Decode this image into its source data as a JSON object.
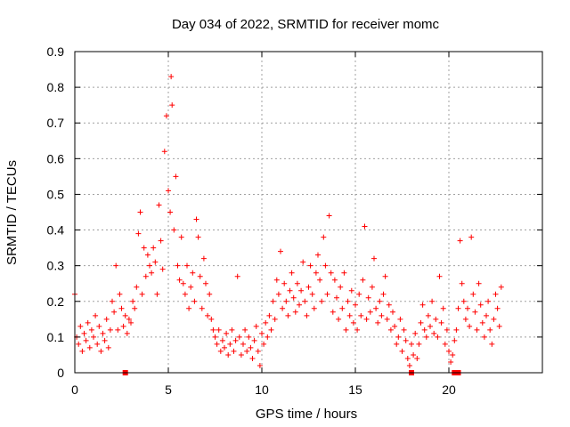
{
  "chart_data": {
    "type": "scatter",
    "title": "Day 034 of 2022, SRMTID for receiver momc",
    "xlabel": "GPS time / hours",
    "ylabel": "SRMTID / TECUs",
    "xlim": [
      0,
      25
    ],
    "ylim": [
      0,
      0.9
    ],
    "xticks": [
      0,
      5,
      10,
      15,
      20
    ],
    "xtick_labels": [
      "0",
      "5",
      "10",
      "15",
      "20"
    ],
    "yticks": [
      0,
      0.1,
      0.2,
      0.3,
      0.4,
      0.5,
      0.6,
      0.7,
      0.8,
      0.9
    ],
    "ytick_labels": [
      "0",
      "0.1",
      "0.2",
      "0.3",
      "0.4",
      "0.5",
      "0.6",
      "0.7",
      "0.8",
      "0.9"
    ],
    "grid": true,
    "marker": "plus",
    "color": "#ff0000",
    "series": [
      {
        "name": "SRMTID",
        "points": [
          [
            0.0,
            0.22
          ],
          [
            0.1,
            0.1
          ],
          [
            0.2,
            0.08
          ],
          [
            0.3,
            0.13
          ],
          [
            0.4,
            0.06
          ],
          [
            0.5,
            0.11
          ],
          [
            0.6,
            0.09
          ],
          [
            0.7,
            0.14
          ],
          [
            0.8,
            0.07
          ],
          [
            0.9,
            0.12
          ],
          [
            1.0,
            0.1
          ],
          [
            1.1,
            0.16
          ],
          [
            1.2,
            0.08
          ],
          [
            1.3,
            0.13
          ],
          [
            1.4,
            0.06
          ],
          [
            1.5,
            0.11
          ],
          [
            1.6,
            0.09
          ],
          [
            1.7,
            0.15
          ],
          [
            1.8,
            0.07
          ],
          [
            1.9,
            0.12
          ],
          [
            2.0,
            0.2
          ],
          [
            2.1,
            0.17
          ],
          [
            2.2,
            0.3
          ],
          [
            2.3,
            0.12
          ],
          [
            2.4,
            0.22
          ],
          [
            2.5,
            0.18
          ],
          [
            2.6,
            0.13
          ],
          [
            2.7,
            0.16
          ],
          [
            2.8,
            0.11
          ],
          [
            2.9,
            0.15
          ],
          [
            3.0,
            0.14
          ],
          [
            3.1,
            0.2
          ],
          [
            3.2,
            0.18
          ],
          [
            3.3,
            0.24
          ],
          [
            3.4,
            0.39
          ],
          [
            3.5,
            0.45
          ],
          [
            3.6,
            0.22
          ],
          [
            3.7,
            0.35
          ],
          [
            3.8,
            0.27
          ],
          [
            3.9,
            0.33
          ],
          [
            4.0,
            0.3
          ],
          [
            4.1,
            0.28
          ],
          [
            4.2,
            0.35
          ],
          [
            4.3,
            0.31
          ],
          [
            4.4,
            0.22
          ],
          [
            4.5,
            0.47
          ],
          [
            4.6,
            0.37
          ],
          [
            4.7,
            0.29
          ],
          [
            4.8,
            0.62
          ],
          [
            4.9,
            0.72
          ],
          [
            5.0,
            0.51
          ],
          [
            5.1,
            0.45
          ],
          [
            5.15,
            0.83
          ],
          [
            5.2,
            0.75
          ],
          [
            5.3,
            0.4
          ],
          [
            5.4,
            0.55
          ],
          [
            5.5,
            0.3
          ],
          [
            5.6,
            0.26
          ],
          [
            5.7,
            0.38
          ],
          [
            5.8,
            0.25
          ],
          [
            5.9,
            0.22
          ],
          [
            6.0,
            0.3
          ],
          [
            6.1,
            0.18
          ],
          [
            6.2,
            0.24
          ],
          [
            6.3,
            0.28
          ],
          [
            6.4,
            0.2
          ],
          [
            6.5,
            0.43
          ],
          [
            6.6,
            0.38
          ],
          [
            6.7,
            0.27
          ],
          [
            6.8,
            0.18
          ],
          [
            6.9,
            0.32
          ],
          [
            7.0,
            0.25
          ],
          [
            7.1,
            0.16
          ],
          [
            7.2,
            0.22
          ],
          [
            7.3,
            0.15
          ],
          [
            7.4,
            0.12
          ],
          [
            7.5,
            0.1
          ],
          [
            7.6,
            0.08
          ],
          [
            7.7,
            0.12
          ],
          [
            7.8,
            0.06
          ],
          [
            7.9,
            0.09
          ],
          [
            8.0,
            0.07
          ],
          [
            8.1,
            0.11
          ],
          [
            8.2,
            0.05
          ],
          [
            8.3,
            0.08
          ],
          [
            8.4,
            0.12
          ],
          [
            8.5,
            0.06
          ],
          [
            8.6,
            0.09
          ],
          [
            8.7,
            0.27
          ],
          [
            8.8,
            0.1
          ],
          [
            8.9,
            0.05
          ],
          [
            9.0,
            0.08
          ],
          [
            9.1,
            0.12
          ],
          [
            9.2,
            0.06
          ],
          [
            9.3,
            0.1
          ],
          [
            9.4,
            0.07
          ],
          [
            9.5,
            0.04
          ],
          [
            9.6,
            0.09
          ],
          [
            9.7,
            0.13
          ],
          [
            9.8,
            0.06
          ],
          [
            9.9,
            0.02
          ],
          [
            10.0,
            0.11
          ],
          [
            10.1,
            0.08
          ],
          [
            10.2,
            0.14
          ],
          [
            10.3,
            0.1
          ],
          [
            10.4,
            0.16
          ],
          [
            10.5,
            0.12
          ],
          [
            10.6,
            0.2
          ],
          [
            10.7,
            0.15
          ],
          [
            10.8,
            0.26
          ],
          [
            10.9,
            0.22
          ],
          [
            11.0,
            0.34
          ],
          [
            11.1,
            0.18
          ],
          [
            11.2,
            0.25
          ],
          [
            11.3,
            0.2
          ],
          [
            11.4,
            0.16
          ],
          [
            11.5,
            0.23
          ],
          [
            11.6,
            0.28
          ],
          [
            11.7,
            0.21
          ],
          [
            11.8,
            0.17
          ],
          [
            11.9,
            0.25
          ],
          [
            12.0,
            0.19
          ],
          [
            12.1,
            0.23
          ],
          [
            12.2,
            0.31
          ],
          [
            12.3,
            0.2
          ],
          [
            12.4,
            0.16
          ],
          [
            12.5,
            0.24
          ],
          [
            12.6,
            0.3
          ],
          [
            12.7,
            0.22
          ],
          [
            12.8,
            0.18
          ],
          [
            12.9,
            0.28
          ],
          [
            13.0,
            0.33
          ],
          [
            13.1,
            0.26
          ],
          [
            13.2,
            0.2
          ],
          [
            13.3,
            0.38
          ],
          [
            13.4,
            0.3
          ],
          [
            13.5,
            0.22
          ],
          [
            13.6,
            0.44
          ],
          [
            13.7,
            0.28
          ],
          [
            13.8,
            0.17
          ],
          [
            13.9,
            0.26
          ],
          [
            14.0,
            0.21
          ],
          [
            14.1,
            0.15
          ],
          [
            14.2,
            0.24
          ],
          [
            14.3,
            0.18
          ],
          [
            14.4,
            0.28
          ],
          [
            14.5,
            0.12
          ],
          [
            14.6,
            0.2
          ],
          [
            14.7,
            0.16
          ],
          [
            14.8,
            0.23
          ],
          [
            14.9,
            0.14
          ],
          [
            15.0,
            0.19
          ],
          [
            15.1,
            0.12
          ],
          [
            15.2,
            0.22
          ],
          [
            15.3,
            0.16
          ],
          [
            15.4,
            0.26
          ],
          [
            15.5,
            0.41
          ],
          [
            15.6,
            0.15
          ],
          [
            15.7,
            0.21
          ],
          [
            15.8,
            0.17
          ],
          [
            15.9,
            0.24
          ],
          [
            16.0,
            0.32
          ],
          [
            16.1,
            0.18
          ],
          [
            16.2,
            0.14
          ],
          [
            16.3,
            0.2
          ],
          [
            16.4,
            0.16
          ],
          [
            16.5,
            0.22
          ],
          [
            16.6,
            0.27
          ],
          [
            16.7,
            0.15
          ],
          [
            16.8,
            0.19
          ],
          [
            16.9,
            0.12
          ],
          [
            17.0,
            0.17
          ],
          [
            17.1,
            0.13
          ],
          [
            17.2,
            0.08
          ],
          [
            17.3,
            0.1
          ],
          [
            17.4,
            0.15
          ],
          [
            17.5,
            0.06
          ],
          [
            17.6,
            0.12
          ],
          [
            17.7,
            0.09
          ],
          [
            17.8,
            0.04
          ],
          [
            17.9,
            0.02
          ],
          [
            18.0,
            0.08
          ],
          [
            18.1,
            0.05
          ],
          [
            18.2,
            0.11
          ],
          [
            18.3,
            0.04
          ],
          [
            18.4,
            0.08
          ],
          [
            18.5,
            0.14
          ],
          [
            18.6,
            0.19
          ],
          [
            18.7,
            0.12
          ],
          [
            18.8,
            0.1
          ],
          [
            18.9,
            0.16
          ],
          [
            19.0,
            0.13
          ],
          [
            19.1,
            0.2
          ],
          [
            19.2,
            0.11
          ],
          [
            19.3,
            0.15
          ],
          [
            19.4,
            0.1
          ],
          [
            19.5,
            0.27
          ],
          [
            19.6,
            0.14
          ],
          [
            19.7,
            0.18
          ],
          [
            19.8,
            0.08
          ],
          [
            19.9,
            0.12
          ],
          [
            20.0,
            0.06
          ],
          [
            20.1,
            0.03
          ],
          [
            20.2,
            0.05
          ],
          [
            20.3,
            0.09
          ],
          [
            20.4,
            0.12
          ],
          [
            20.5,
            0.18
          ],
          [
            20.6,
            0.37
          ],
          [
            20.7,
            0.25
          ],
          [
            20.8,
            0.2
          ],
          [
            20.9,
            0.15
          ],
          [
            21.0,
            0.18
          ],
          [
            21.1,
            0.13
          ],
          [
            21.2,
            0.38
          ],
          [
            21.3,
            0.22
          ],
          [
            21.4,
            0.17
          ],
          [
            21.5,
            0.12
          ],
          [
            21.6,
            0.25
          ],
          [
            21.7,
            0.19
          ],
          [
            21.8,
            0.14
          ],
          [
            21.9,
            0.1
          ],
          [
            22.0,
            0.16
          ],
          [
            22.1,
            0.2
          ],
          [
            22.2,
            0.12
          ],
          [
            22.3,
            0.08
          ],
          [
            22.4,
            0.15
          ],
          [
            22.5,
            0.22
          ],
          [
            22.6,
            0.18
          ],
          [
            22.7,
            0.13
          ],
          [
            22.8,
            0.24
          ]
        ]
      }
    ],
    "markers_on_axis": [
      {
        "x": 2.7,
        "y": 0
      },
      {
        "x": 18.0,
        "y": 0
      },
      {
        "x": 20.3,
        "y": 0
      },
      {
        "x": 20.5,
        "y": 0
      }
    ]
  }
}
